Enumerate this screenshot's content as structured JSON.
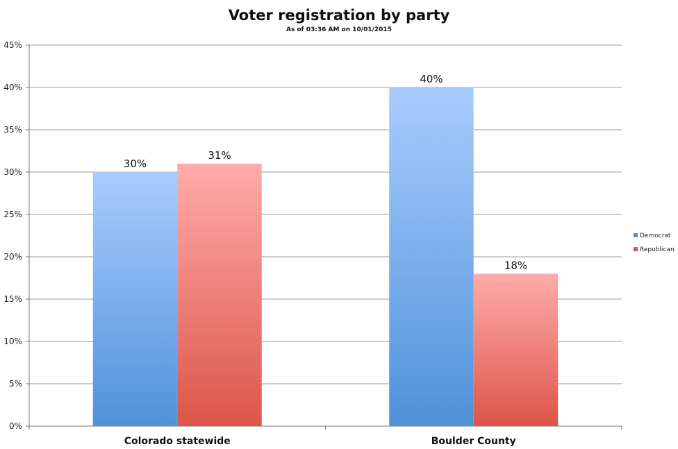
{
  "chart_data": {
    "type": "bar",
    "title": "Voter registration by party",
    "subtitle": "As of 03:36 AM on 10/01/2015",
    "xlabel": "",
    "ylabel": "",
    "categories": [
      "Colorado statewide",
      "Boulder County"
    ],
    "series": [
      {
        "name": "Democrat",
        "values": [
          30,
          40
        ],
        "color_top": "#a9ccff",
        "color_bottom": "#4f92d8"
      },
      {
        "name": "Republican",
        "values": [
          31,
          18
        ],
        "color_top": "#ffacab",
        "color_bottom": "#dc5548"
      }
    ],
    "data_labels": [
      [
        "30%",
        "40%"
      ],
      [
        "31%",
        "18%"
      ]
    ],
    "ylim": [
      0,
      45
    ],
    "yticks": [
      0,
      5,
      10,
      15,
      20,
      25,
      30,
      35,
      40,
      45
    ],
    "ytick_labels": [
      "0%",
      "5%",
      "10%",
      "15%",
      "20%",
      "25%",
      "30%",
      "35%",
      "40%",
      "45%"
    ],
    "grid": true,
    "legend_position": "right"
  }
}
